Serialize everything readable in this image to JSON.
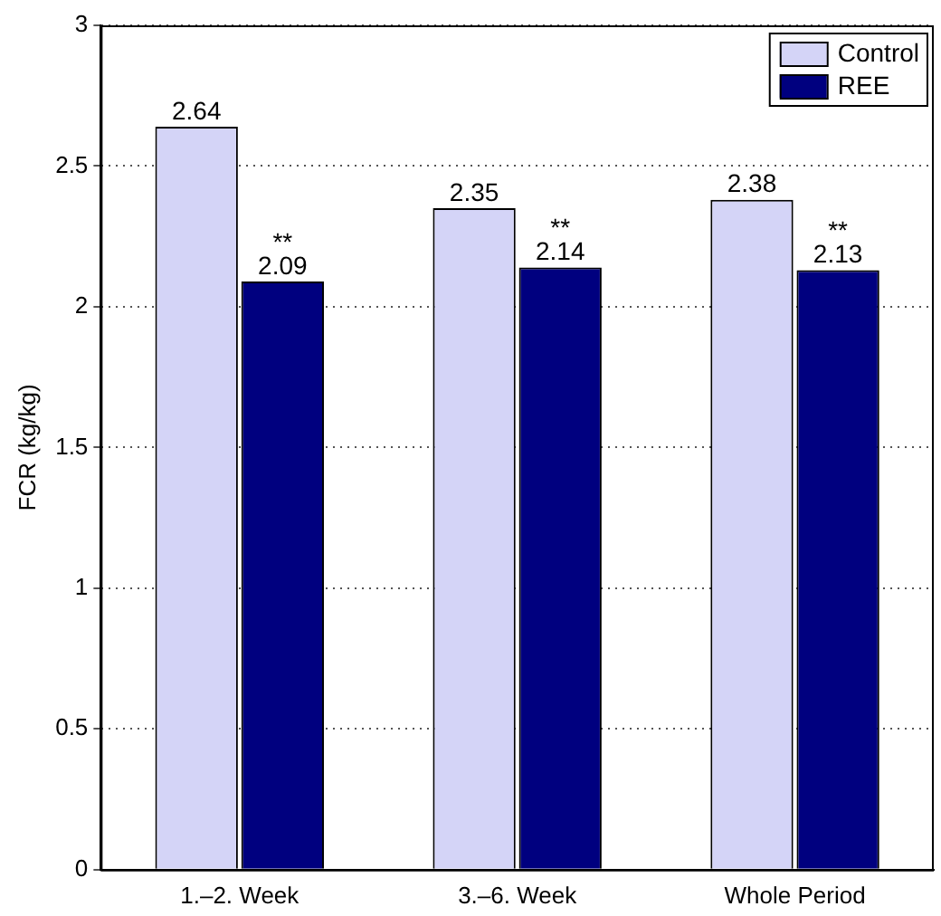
{
  "chart_data": {
    "type": "bar",
    "ylabel": "FCR (kg/kg)",
    "categories": [
      "1.–2. Week",
      "3.–6. Week",
      "Whole Period"
    ],
    "series": [
      {
        "name": "Control",
        "color": "#d4d4f7",
        "values": [
          2.64,
          2.35,
          2.38
        ]
      },
      {
        "name": "REE",
        "color": "#00007f",
        "values": [
          2.09,
          2.14,
          2.13
        ]
      }
    ],
    "ylim": [
      0,
      3
    ],
    "yticks": [
      0,
      0.5,
      1,
      1.5,
      2,
      2.5,
      3
    ],
    "grid": "y",
    "legend": "top right",
    "data_labels": true,
    "annotations": [
      {
        "text": "**",
        "x": "1.–2. Week",
        "y": 2.09
      },
      {
        "text": "**",
        "x": "3.–6. Week",
        "y": 2.14
      },
      {
        "text": "**",
        "x": "Whole Period",
        "y": 2.13
      }
    ]
  }
}
